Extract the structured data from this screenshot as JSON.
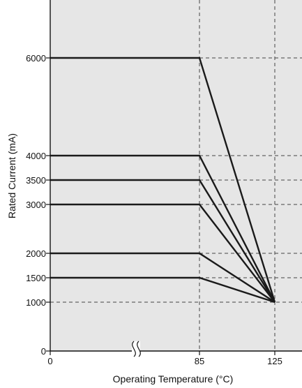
{
  "chart_data": {
    "type": "line",
    "xlabel": "Operating Temperature (°C)",
    "ylabel": "Rated Current (mA)",
    "x_ticks": [
      0,
      85,
      125
    ],
    "y_ticks": [
      0,
      1000,
      1500,
      2000,
      3000,
      3500,
      4000,
      6000
    ],
    "ylim": [
      0,
      6000
    ],
    "axis_break": "between 0 and 85 on x-axis",
    "grid": "dashed reference lines at x=85, x=125 and y=1000, 1500, 2000, 3000, 3500, 4000, 6000 beyond x=85",
    "series": [
      {
        "x": [
          0,
          85,
          125
        ],
        "values": [
          6000,
          6000,
          1000
        ]
      },
      {
        "x": [
          0,
          85,
          125
        ],
        "values": [
          4000,
          4000,
          1000
        ]
      },
      {
        "x": [
          0,
          85,
          125
        ],
        "values": [
          3500,
          3500,
          1000
        ]
      },
      {
        "x": [
          0,
          85,
          125
        ],
        "values": [
          3000,
          3000,
          1000
        ]
      },
      {
        "x": [
          0,
          85,
          125
        ],
        "values": [
          2000,
          2000,
          1000
        ]
      },
      {
        "x": [
          0,
          85,
          125
        ],
        "values": [
          1500,
          1500,
          1000
        ]
      }
    ],
    "colors": {
      "plot_background": "#e6e6e6",
      "line": "#1a1a1a",
      "grid": "#444444"
    }
  }
}
